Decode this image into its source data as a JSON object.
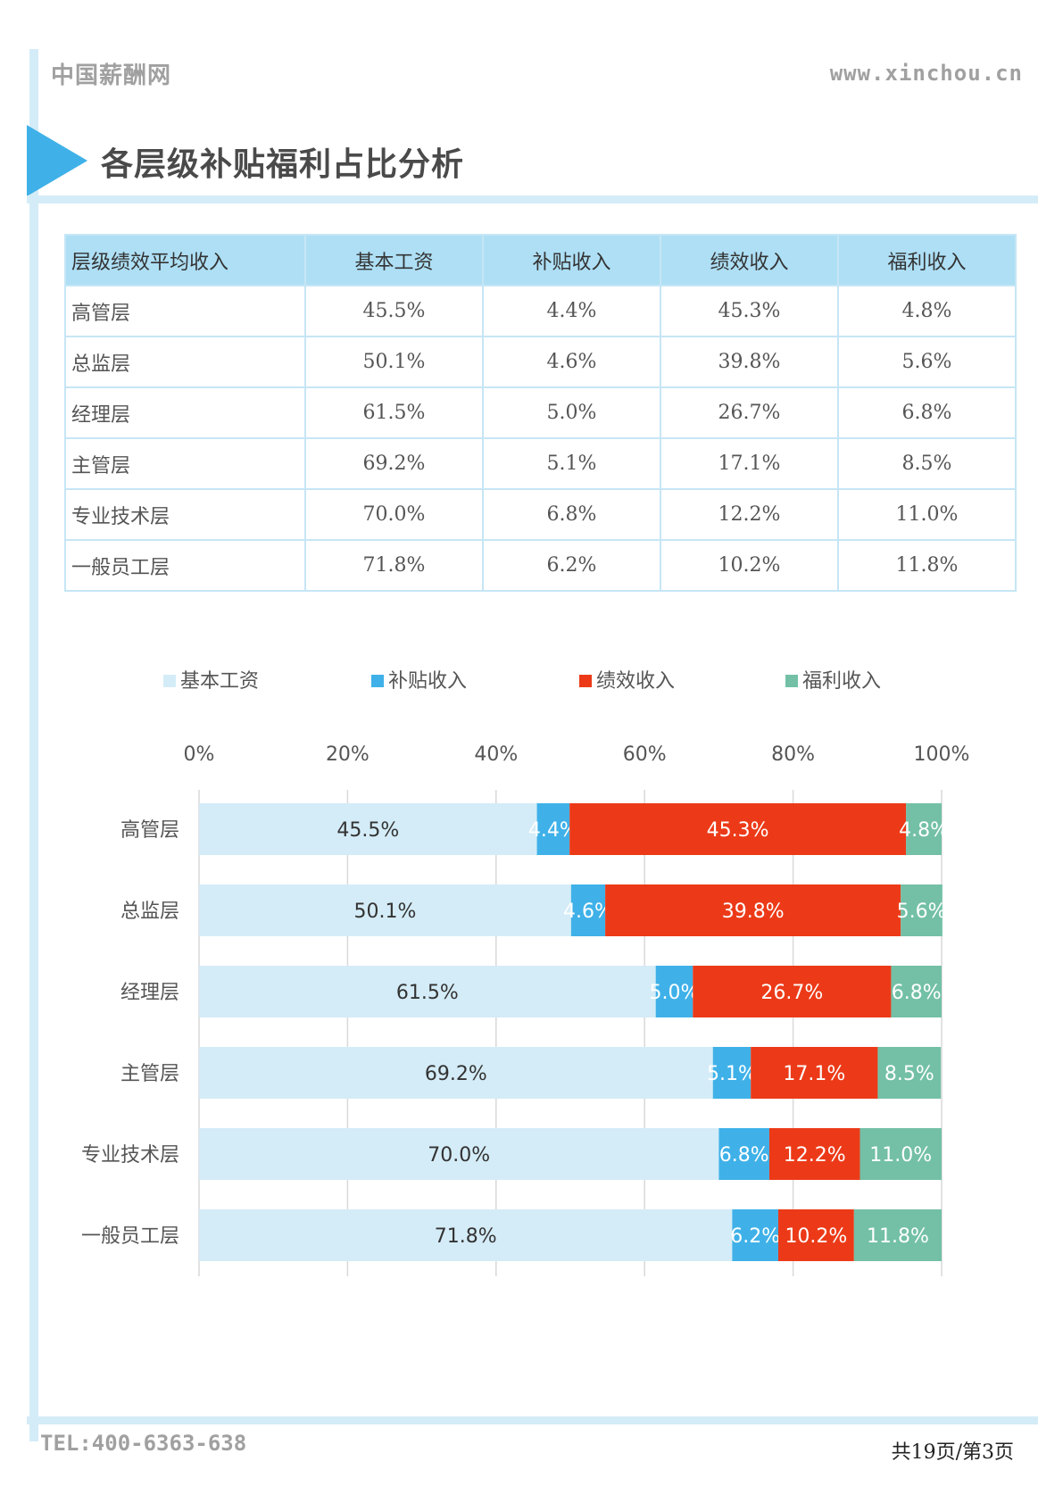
{
  "header": {
    "site_name": "中国薪酬网",
    "site_url": "www.xinchou.cn"
  },
  "title": "各层级补贴福利占比分析",
  "table": {
    "headers": [
      "层级绩效平均收入",
      "基本工资",
      "补贴收入",
      "绩效收入",
      "福利收入"
    ],
    "rows": [
      [
        "高管层",
        "45.5%",
        "4.4%",
        "45.3%",
        "4.8%"
      ],
      [
        "总监层",
        "50.1%",
        "4.6%",
        "39.8%",
        "5.6%"
      ],
      [
        "经理层",
        "61.5%",
        "5.0%",
        "26.7%",
        "6.8%"
      ],
      [
        "主管层",
        "69.2%",
        "5.1%",
        "17.1%",
        "8.5%"
      ],
      [
        "专业技术层",
        "70.0%",
        "6.8%",
        "12.2%",
        "11.0%"
      ],
      [
        "一般员工层",
        "71.8%",
        "6.2%",
        "10.2%",
        "11.8%"
      ]
    ]
  },
  "chart_data": {
    "type": "bar",
    "orientation": "horizontal",
    "stacked": "percent",
    "categories": [
      "高管层",
      "总监层",
      "经理层",
      "主管层",
      "专业技术层",
      "一般员工层"
    ],
    "series": [
      {
        "name": "基本工资",
        "color": "#d4ecf7",
        "label_color": "#333333",
        "values": [
          45.5,
          50.1,
          61.5,
          69.2,
          70.0,
          71.8
        ]
      },
      {
        "name": "补贴收入",
        "color": "#3fb1e8",
        "label_color": "#ffffff",
        "values": [
          4.4,
          4.6,
          5.0,
          5.1,
          6.8,
          6.2
        ]
      },
      {
        "name": "绩效收入",
        "color": "#ec3a18",
        "label_color": "#ffffff",
        "values": [
          45.3,
          39.8,
          26.7,
          17.1,
          12.2,
          10.2
        ]
      },
      {
        "name": "福利收入",
        "color": "#73c0a6",
        "label_color": "#ffffff",
        "values": [
          4.8,
          5.6,
          6.8,
          8.5,
          11.0,
          11.8
        ]
      }
    ],
    "xlim": [
      0,
      100
    ],
    "x_ticks": [
      "0%",
      "20%",
      "40%",
      "60%",
      "80%",
      "100%"
    ],
    "legend_position": "top",
    "x_axis_position": "top",
    "grid": true,
    "data_labels": true
  },
  "footer": {
    "tel": "TEL:400-6363-638",
    "page": "共19页/第3页"
  }
}
